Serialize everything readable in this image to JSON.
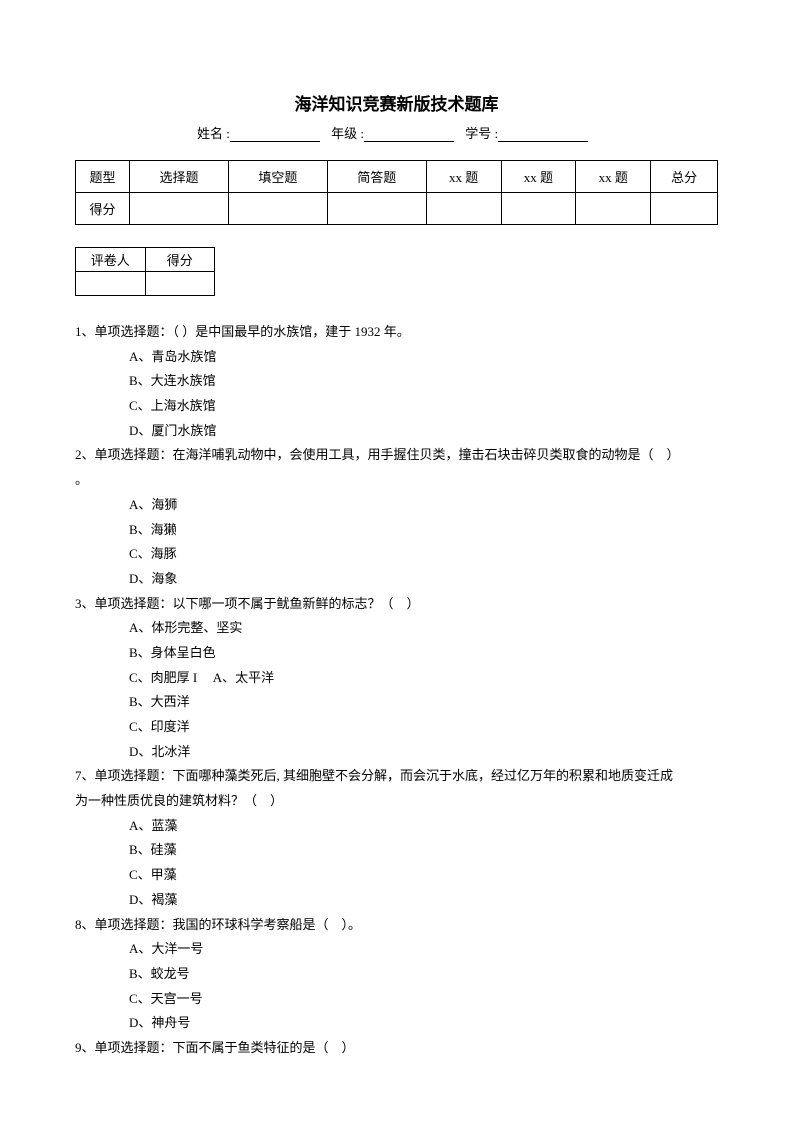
{
  "title": "海洋知识竞赛新版技术题库",
  "info": {
    "name_label": "姓名 :",
    "grade_label": "年级 :",
    "id_label": "学号 :"
  },
  "score_table": {
    "row1": [
      "题型",
      "选择题",
      "填空题",
      "简答题",
      "xx 题",
      "xx 题",
      "xx 题",
      "总分"
    ],
    "row2_label": "得分"
  },
  "grader_table": {
    "header": [
      "评卷人",
      "得分"
    ]
  },
  "questions": [
    {
      "text": "1、单项选择题：（  ）是中国最早的水族馆，建于 1932 年。",
      "options": [
        "A、青岛水族馆",
        "B、大连水族馆",
        "C、上海水族馆",
        "D、厦门水族馆"
      ]
    },
    {
      "text": "2、单项选择题：在海洋哺乳动物中，会使用工具，用手握住贝类，撞击石块击碎贝类取食的动物是（　）",
      "extra": "。",
      "options": [
        "A、海狮",
        "B、海獭",
        "C、海豚",
        "D、海象"
      ]
    },
    {
      "text": "3、单项选择题：以下哪一项不属于鱿鱼新鲜的标志？（　）",
      "options": [
        "A、体形完整、坚实",
        "B、身体呈白色",
        "C、肉肥厚 I　 A、太平洋",
        "B、大西洋",
        "C、印度洋",
        "D、北冰洋"
      ]
    },
    {
      "text": "7、单项选择题：下面哪种藻类死后, 其细胞壁不会分解，而会沉于水底，经过亿万年的积累和地质变迁成",
      "text2": "为一种性质优良的建筑材料？（　）",
      "options": [
        "A、蓝藻",
        "B、硅藻",
        "C、甲藻",
        "D、褐藻"
      ]
    },
    {
      "text": "8、单项选择题：我国的环球科学考察船是（　）。",
      "options": [
        "A、大洋一号",
        "B、蛟龙号",
        "C、天宫一号",
        "D、神舟号"
      ]
    },
    {
      "text": "9、单项选择题：下面不属于鱼类特征的是（　）",
      "options": []
    }
  ]
}
